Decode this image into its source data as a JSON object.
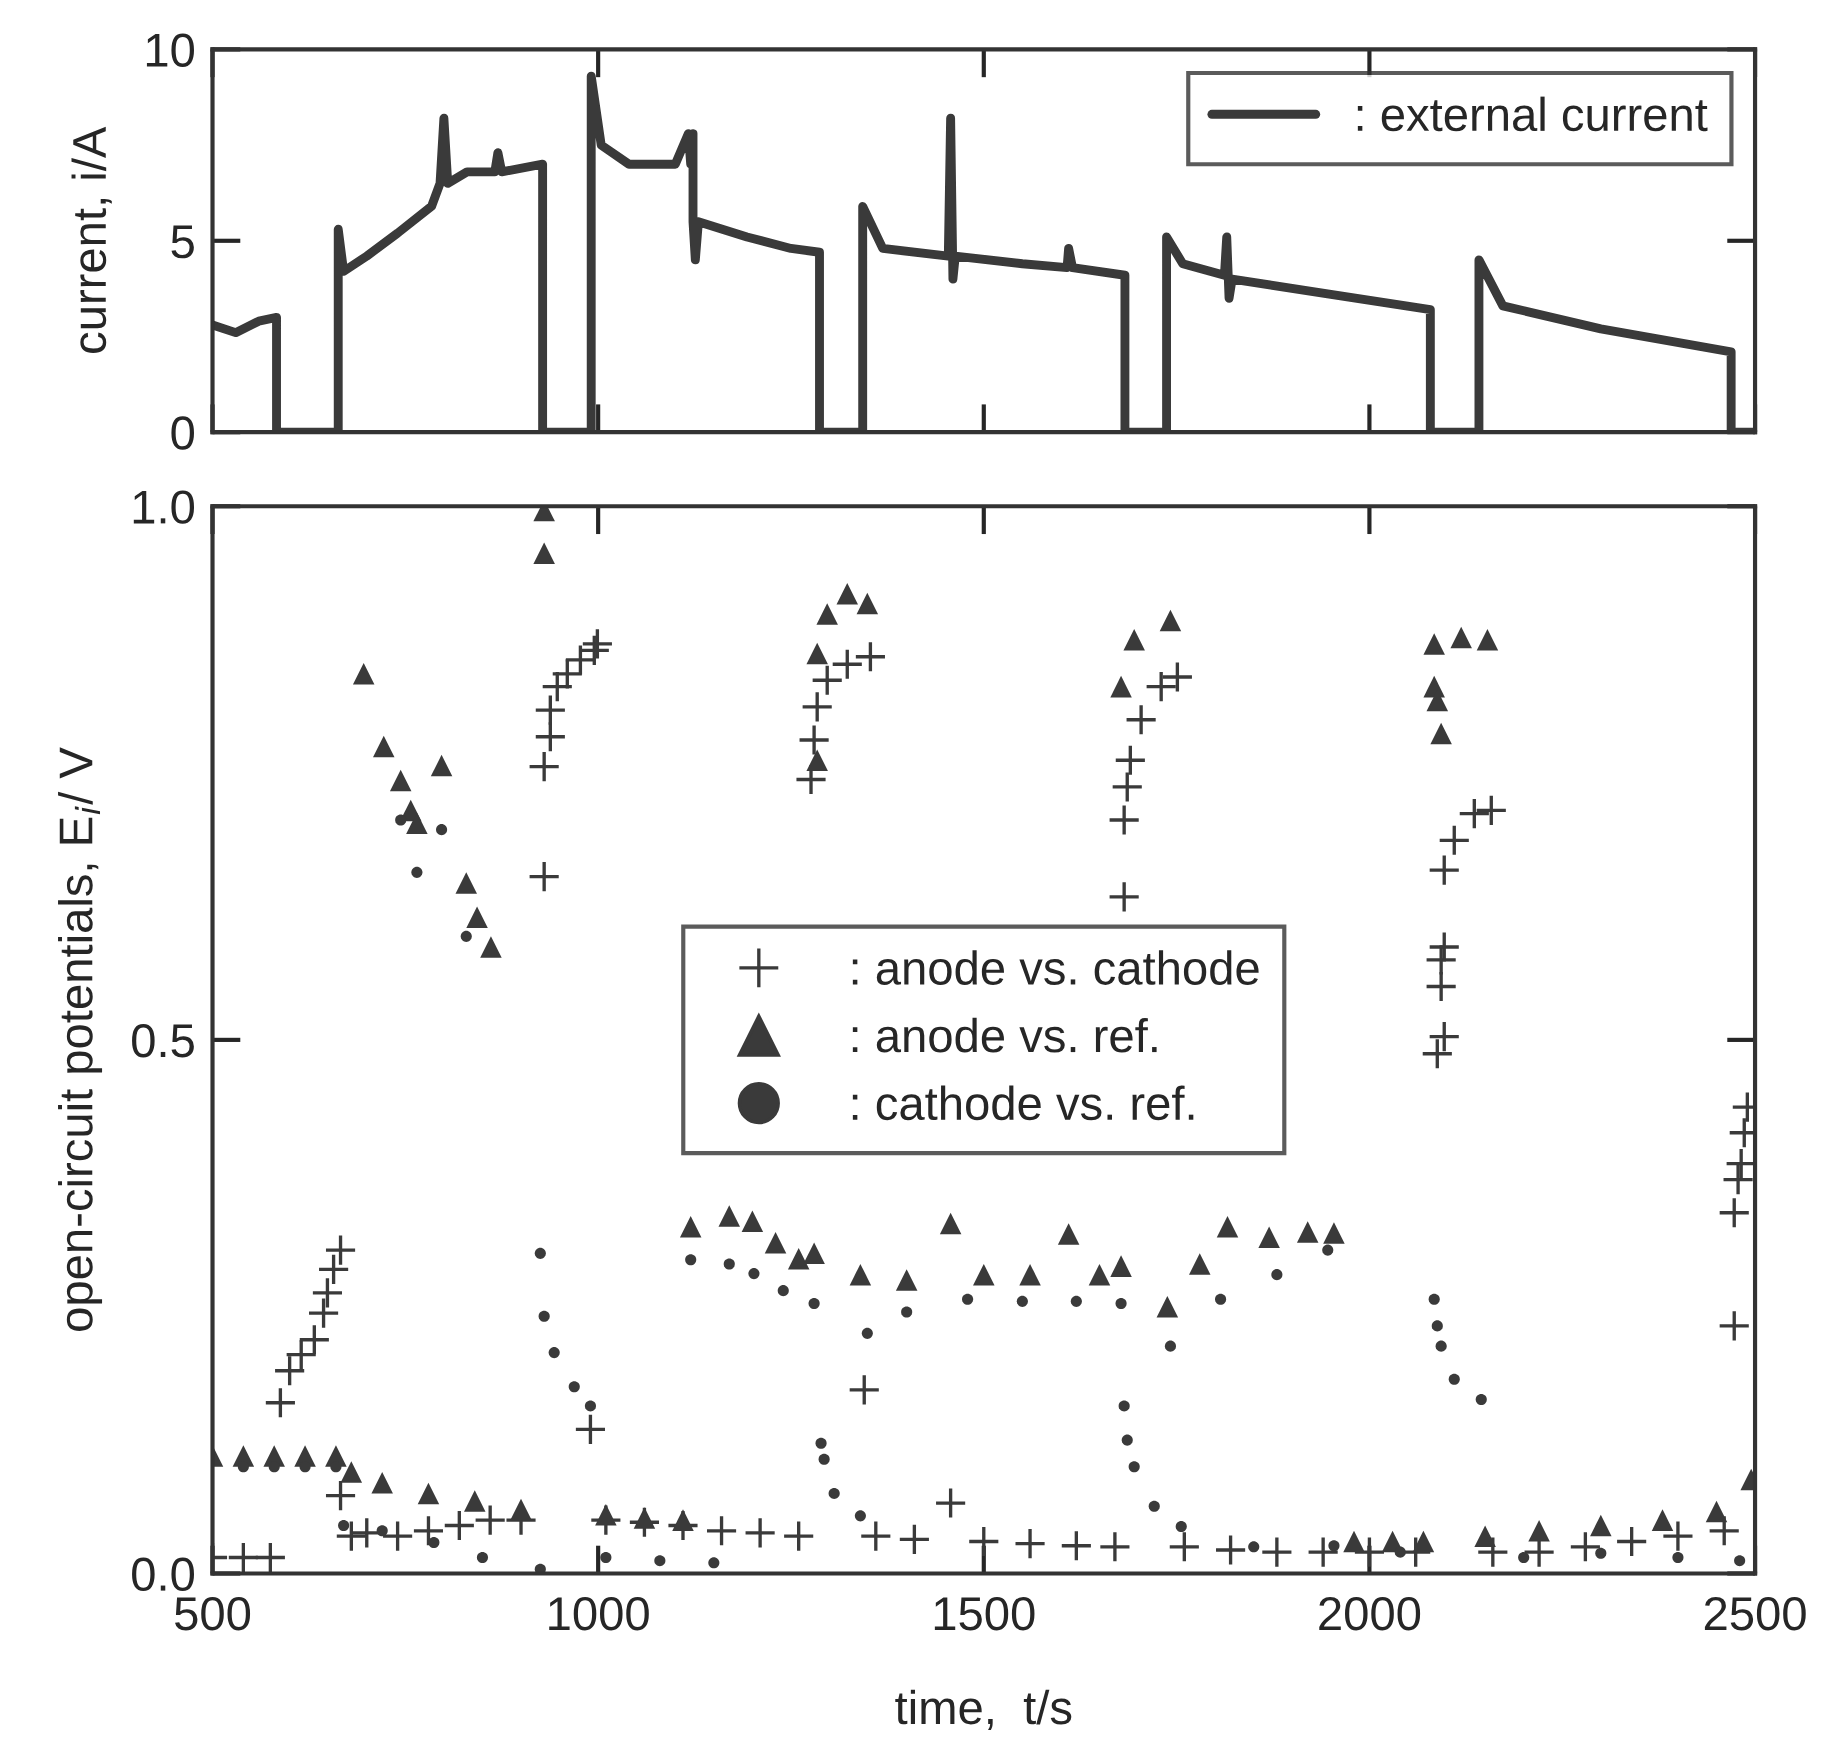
{
  "chart_data": [
    {
      "type": "line",
      "ylabel": "current, i/A",
      "xlim": [
        500,
        2500
      ],
      "xticks": [
        500,
        1000,
        1500,
        2000,
        2500
      ],
      "ylim": [
        0,
        10
      ],
      "yticks": [
        0,
        5,
        10
      ],
      "tick_labels": "y",
      "grid": false,
      "legend": "top right",
      "marker": "none",
      "line_style": "solid",
      "series": [
        {
          "name": ": external current",
          "color": "#3a3a3a",
          "x": [
            500,
            530,
            560,
            583,
            583,
            663,
            663,
            670,
            700,
            740,
            784,
            795,
            800,
            805,
            830,
            866,
            870,
            875,
            928,
            928,
            991,
            991,
            1004,
            1040,
            1100,
            1117,
            1120,
            1123,
            1123,
            1126,
            1130,
            1193,
            1250,
            1287,
            1287,
            1343,
            1343,
            1369,
            1454,
            1457,
            1460,
            1463,
            1550,
            1608,
            1610,
            1615,
            1683,
            1683,
            1737,
            1737,
            1758,
            1812,
            1815,
            1818,
            1822,
            1950,
            2079,
            2079,
            2142,
            2142,
            2173,
            2300,
            2469,
            2469,
            2500
          ],
          "values": [
            2.8,
            2.6,
            2.9,
            3.0,
            0,
            0,
            5.3,
            4.2,
            4.6,
            5.2,
            5.9,
            6.5,
            8.2,
            6.5,
            6.8,
            6.8,
            7.3,
            6.8,
            7.0,
            0,
            0,
            9.3,
            7.5,
            7.0,
            7.0,
            7.8,
            7.0,
            7.8,
            5.5,
            4.5,
            5.5,
            5.1,
            4.8,
            4.7,
            0,
            0,
            5.9,
            4.8,
            4.6,
            8.2,
            4.0,
            4.6,
            4.4,
            4.3,
            4.8,
            4.3,
            4.1,
            0,
            0,
            5.1,
            4.4,
            4.1,
            5.1,
            3.5,
            4.0,
            3.6,
            3.2,
            0,
            0,
            4.5,
            3.3,
            2.7,
            2.1,
            0,
            0
          ]
        }
      ]
    },
    {
      "type": "scatter",
      "xlabel": "time,  t/s",
      "ylabel": "open-circuit potentials, E$_{i}$/ V",
      "xlim": [
        500,
        2500
      ],
      "xticks": [
        500,
        1000,
        1500,
        2000,
        2500
      ],
      "ylim": [
        0,
        1
      ],
      "yticks": [
        {
          "value": 0,
          "label": "0.0"
        },
        {
          "value": 0.5,
          "label": "0.5"
        },
        {
          "value": 1,
          "label": "1.0"
        }
      ],
      "grid": false,
      "legend": "center",
      "series": [
        {
          "name": ": anode vs. cathode",
          "color": "#3a3a3a",
          "marker": "cross",
          "x": [
            500,
            540,
            575,
            588,
            600,
            615,
            632,
            644,
            649,
            657,
            666,
            666,
            680,
            700,
            740,
            780,
            820,
            860,
            900,
            930,
            930,
            938,
            938,
            947,
            960,
            977,
            995,
            999,
            990,
            1010,
            1060,
            1110,
            1160,
            1210,
            1260,
            1276,
            1280,
            1284,
            1297,
            1323,
            1353,
            1345,
            1360,
            1410,
            1457,
            1500,
            1560,
            1620,
            1670,
            1682,
            1682,
            1686,
            1690,
            1704,
            1730,
            1751,
            1760,
            1820,
            1880,
            1940,
            2000,
            2060,
            2088,
            2097,
            2093,
            2093,
            2097,
            2097,
            2110,
            2136,
            2158,
            2160,
            2220,
            2280,
            2340,
            2400,
            2460,
            2473,
            2473,
            2478,
            2482,
            2486,
            2490
          ],
          "values": [
            0.015,
            0.015,
            0.015,
            0.16,
            0.19,
            0.205,
            0.219,
            0.244,
            0.263,
            0.285,
            0.303,
            0.073,
            0.035,
            0.038,
            0.035,
            0.04,
            0.045,
            0.05,
            0.05,
            0.653,
            0.756,
            0.784,
            0.809,
            0.831,
            0.843,
            0.856,
            0.865,
            0.871,
            0.135,
            0.05,
            0.048,
            0.045,
            0.04,
            0.038,
            0.035,
            0.744,
            0.781,
            0.812,
            0.837,
            0.852,
            0.859,
            0.172,
            0.035,
            0.032,
            0.066,
            0.03,
            0.028,
            0.026,
            0.025,
            0.634,
            0.706,
            0.737,
            0.762,
            0.8,
            0.831,
            0.84,
            0.025,
            0.022,
            0.02,
            0.02,
            0.02,
            0.02,
            0.487,
            0.503,
            0.55,
            0.575,
            0.587,
            0.659,
            0.687,
            0.712,
            0.715,
            0.02,
            0.02,
            0.025,
            0.03,
            0.035,
            0.04,
            0.232,
            0.338,
            0.369,
            0.384,
            0.413,
            0.437
          ]
        },
        {
          "name": ": anode vs. ref.",
          "color": "#3a3a3a",
          "marker": "triangle",
          "x": [
            500,
            540,
            580,
            620,
            660,
            680,
            696,
            722,
            744,
            757,
            765,
            797,
            829,
            843,
            861,
            720,
            780,
            840,
            900,
            930,
            930,
            1010,
            1060,
            1110,
            1120,
            1170,
            1200,
            1230,
            1260,
            1280,
            1284,
            1284,
            1297,
            1323,
            1349,
            1340,
            1400,
            1457,
            1500,
            1560,
            1610,
            1650,
            1678,
            1678,
            1695,
            1742,
            1738,
            1780,
            1816,
            1870,
            1920,
            1954,
            1980,
            2030,
            2070,
            2084,
            2084,
            2088,
            2093,
            2119,
            2153,
            2150,
            2220,
            2300,
            2380,
            2450,
            2495
          ],
          "values": [
            0.11,
            0.11,
            0.11,
            0.11,
            0.11,
            0.095,
            0.843,
            0.775,
            0.743,
            0.715,
            0.703,
            0.757,
            0.647,
            0.615,
            0.587,
            0.085,
            0.075,
            0.068,
            0.06,
            0.996,
            0.956,
            0.055,
            0.052,
            0.05,
            0.325,
            0.335,
            0.33,
            0.31,
            0.295,
            0.3,
            0.762,
            0.862,
            0.899,
            0.918,
            0.909,
            0.28,
            0.275,
            0.328,
            0.28,
            0.28,
            0.318,
            0.28,
            0.288,
            0.831,
            0.875,
            0.893,
            0.25,
            0.29,
            0.325,
            0.315,
            0.32,
            0.319,
            0.03,
            0.03,
            0.03,
            0.831,
            0.871,
            0.818,
            0.787,
            0.877,
            0.875,
            0.035,
            0.04,
            0.045,
            0.05,
            0.058,
            0.088
          ]
        },
        {
          "name": ": cathode vs. ref.",
          "color": "#3a3a3a",
          "marker": "circle",
          "x": [
            540,
            580,
            620,
            660,
            670,
            720,
            744,
            765,
            797,
            829,
            787,
            850,
            925,
            925,
            930,
            943,
            969,
            990,
            1010,
            1080,
            1150,
            1120,
            1170,
            1202,
            1240,
            1280,
            1289,
            1293,
            1306,
            1340,
            1349,
            1400,
            1479,
            1550,
            1620,
            1678,
            1682,
            1686,
            1695,
            1721,
            1756,
            1742,
            1807,
            1880,
            1946,
            1850,
            1954,
            2040,
            2084,
            2088,
            2093,
            2110,
            2145,
            2200,
            2300,
            2400,
            2480
          ],
          "values": [
            0.1,
            0.1,
            0.1,
            0.1,
            0.045,
            0.04,
            0.706,
            0.657,
            0.697,
            0.597,
            0.029,
            0.015,
            0.004,
            0.3,
            0.241,
            0.207,
            0.175,
            0.157,
            0.015,
            0.012,
            0.01,
            0.294,
            0.29,
            0.281,
            0.265,
            0.253,
            0.122,
            0.107,
            0.075,
            0.054,
            0.225,
            0.245,
            0.257,
            0.255,
            0.255,
            0.253,
            0.157,
            0.125,
            0.1,
            0.063,
            0.044,
            0.213,
            0.257,
            0.28,
            0.303,
            0.025,
            0.026,
            0.02,
            0.257,
            0.232,
            0.213,
            0.182,
            0.163,
            0.015,
            0.019,
            0.015,
            0.012
          ]
        }
      ]
    }
  ]
}
